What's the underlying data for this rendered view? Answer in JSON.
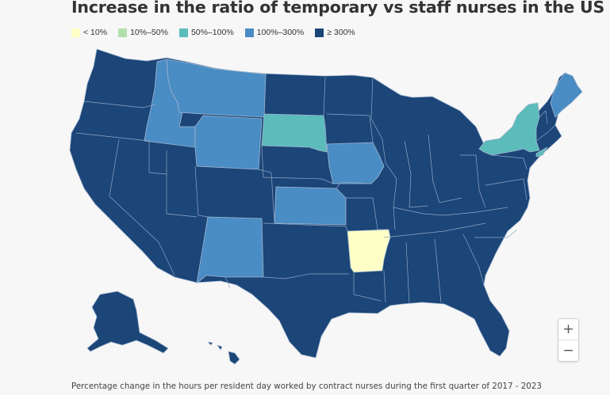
{
  "title": "Increase in the ratio of temporary vs staff nurses in the US",
  "legend": [
    {
      "label": "< 10%",
      "color": "#ffffc8"
    },
    {
      "label": "10%–50%",
      "color": "#b3dfae"
    },
    {
      "label": "50%–100%",
      "color": "#5cbbbb"
    },
    {
      "label": "100%–300%",
      "color": "#4a8cc4"
    },
    {
      "label": "≥ 300%",
      "color": "#1c4578"
    }
  ],
  "map": {
    "category_colors": {
      "lt10": "#ffffc8",
      "c50_100": "#5cbbbb",
      "c100_300": "#4a8cc4",
      "ge300": "#1c4578"
    },
    "category_by_state": {
      "Arkansas": "< 10%",
      "New York": "50%–100%",
      "South Dakota": "50%–100%",
      "Idaho": "100%–300%",
      "Montana": "100%–300%",
      "Wyoming": "100%–300%",
      "Iowa": "100%–300%",
      "Kansas": "100%–300%",
      "New Mexico": "100%–300%",
      "Maine": "100%–300%",
      "Other states": "≥ 300%"
    },
    "base_color": "#1c4578"
  },
  "zoom": {
    "in_label": "+",
    "out_label": "−"
  },
  "caption": "Percentage change in the hours per resident day worked by contract nurses during the first quarter of 2017 - 2023"
}
